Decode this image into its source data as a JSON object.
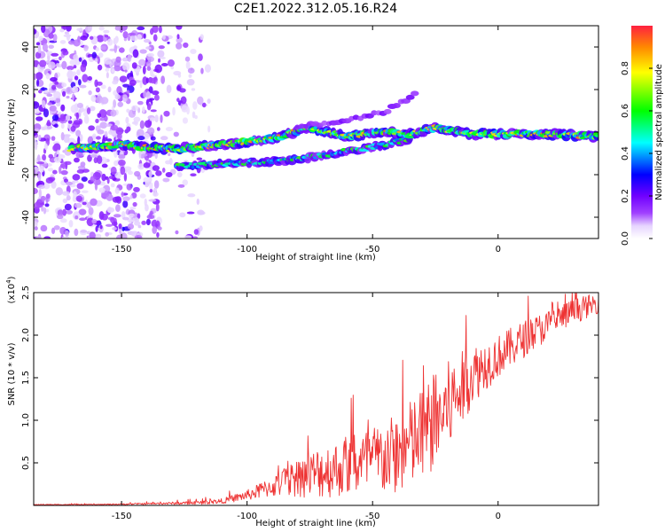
{
  "figure_title": "C2E1.2022.312.05.16.R24",
  "chart_data": [
    {
      "type": "heatmap",
      "xlabel": "Height of straight line (km)",
      "ylabel": "Frequency (Hz)",
      "xlim": [
        -185,
        40
      ],
      "ylim": [
        -50,
        50
      ],
      "xticks": [
        -150,
        -100,
        -50,
        0
      ],
      "yticks": [
        -40,
        -20,
        0,
        20,
        40
      ],
      "colorbar": {
        "label": "Normalized spectral amplitude",
        "range": [
          0,
          1
        ],
        "ticks": [
          0.0,
          0.2,
          0.4,
          0.6,
          0.8
        ],
        "colormap": [
          "#ffffff",
          "#ddc8ff",
          "#8000ff",
          "#0000ff",
          "#00ffff",
          "#00ff00",
          "#ffff00",
          "#ff0000"
        ]
      },
      "features": [
        {
          "name": "noise",
          "x_range": [
            -185,
            -115
          ],
          "y_range": [
            -50,
            50
          ],
          "amplitude": 0.15
        },
        {
          "name": "main trace",
          "points": [
            [
              -170,
              -8
            ],
            [
              -150,
              -6
            ],
            [
              -130,
              -8
            ],
            [
              -110,
              -6
            ],
            [
              -90,
              -3
            ],
            [
              -75,
              2
            ],
            [
              -60,
              -2
            ],
            [
              -45,
              0
            ],
            [
              -35,
              -1
            ],
            [
              -25,
              2
            ],
            [
              -10,
              -1
            ],
            [
              0,
              -1
            ],
            [
              20,
              -1
            ],
            [
              40,
              -2
            ]
          ],
          "amplitude": 0.7
        },
        {
          "name": "lower branch",
          "points": [
            [
              -128,
              -16
            ],
            [
              -110,
              -15
            ],
            [
              -90,
              -14
            ],
            [
              -75,
              -12
            ],
            [
              -60,
              -9
            ],
            [
              -45,
              -6
            ],
            [
              -35,
              -3
            ]
          ],
          "amplitude": 0.5
        },
        {
          "name": "upper branch",
          "points": [
            [
              -80,
              3
            ],
            [
              -60,
              5
            ],
            [
              -45,
              10
            ],
            [
              -32,
              18
            ]
          ],
          "amplitude": 0.15
        }
      ]
    },
    {
      "type": "line",
      "xlabel": "Height of straight line (km)",
      "ylabel": "SNR (10 * v/v)",
      "scale_label": "(x10",
      "scale_exp": "4",
      "scale_close": ")",
      "xlim": [
        -185,
        40
      ],
      "ylim": [
        0,
        2.5
      ],
      "xticks": [
        -150,
        -100,
        -50,
        0
      ],
      "yticks": [
        0.5,
        1.0,
        1.5,
        2.0,
        2.5
      ],
      "series": [
        {
          "name": "SNR",
          "color": "#ee3333",
          "x": [
            -185,
            -160,
            -140,
            -120,
            -110,
            -100,
            -90,
            -80,
            -70,
            -60,
            -50,
            -40,
            -30,
            -20,
            -10,
            0,
            10,
            20,
            30,
            40
          ],
          "values": [
            0.01,
            0.01,
            0.02,
            0.03,
            0.05,
            0.12,
            0.22,
            0.32,
            0.4,
            0.45,
            0.52,
            0.6,
            0.82,
            1.15,
            1.55,
            1.75,
            1.95,
            2.12,
            2.28,
            2.38
          ],
          "amplitude": [
            0.005,
            0.005,
            0.01,
            0.02,
            0.03,
            0.06,
            0.12,
            0.22,
            0.32,
            0.34,
            0.42,
            0.48,
            0.58,
            0.55,
            0.35,
            0.25,
            0.22,
            0.18,
            0.15,
            0.12
          ]
        }
      ]
    }
  ]
}
